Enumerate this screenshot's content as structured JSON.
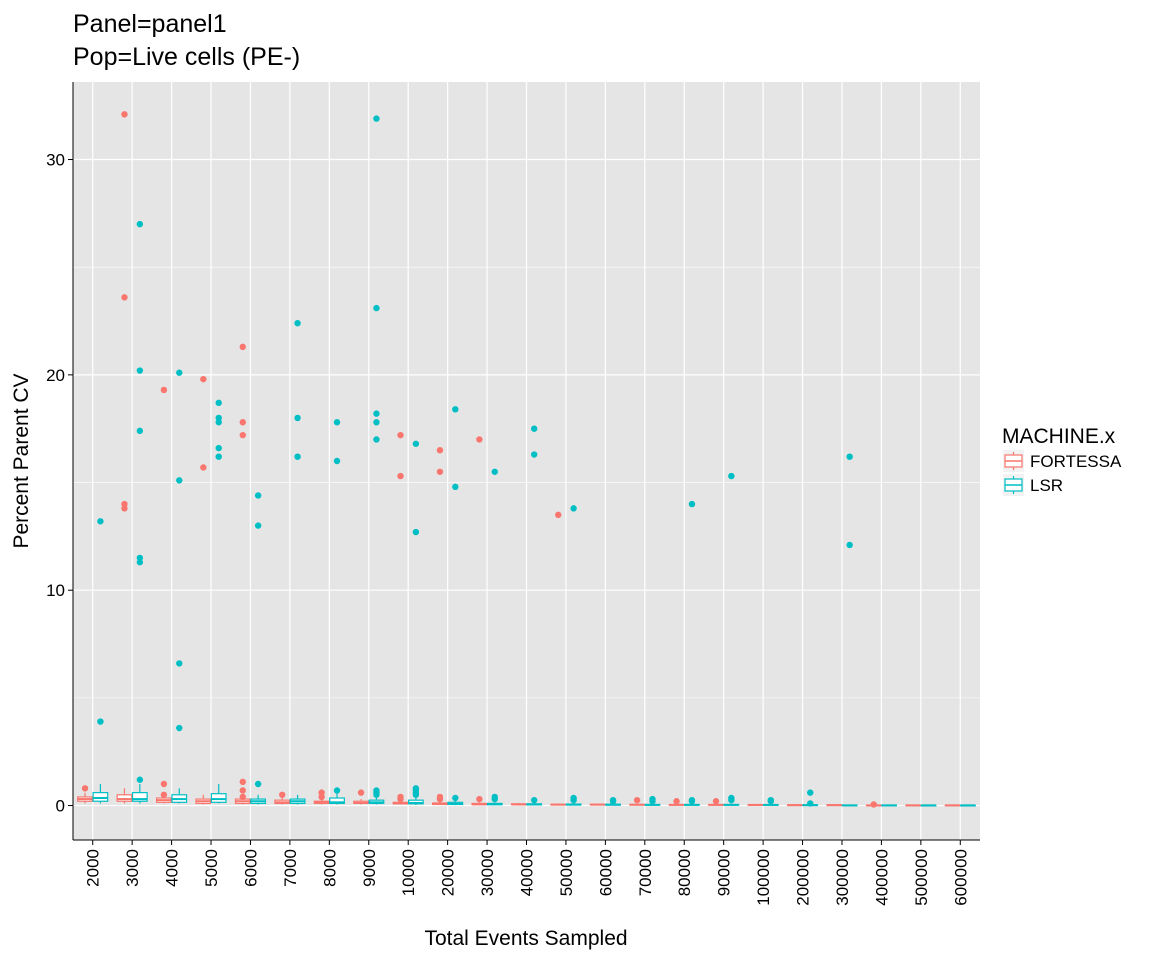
{
  "colors": {
    "FORTESSA": "#f8766d",
    "LSR": "#00bfc4",
    "panel_bg": "#e5e5e5",
    "grid": "#ffffff"
  },
  "chart_data": {
    "type": "box",
    "title": "Panel=panel1",
    "subtitle": "Pop=Live cells (PE-)",
    "xlabel": "Total Events Sampled",
    "ylabel": "Percent Parent CV",
    "ylim": [
      -1.6,
      33.6
    ],
    "y_ticks": [
      0,
      10,
      20,
      30
    ],
    "grid": true,
    "legend_position": "right",
    "legend": {
      "title": "MACHINE.x",
      "entries": [
        "FORTESSA",
        "LSR"
      ]
    },
    "categories": [
      "2000",
      "3000",
      "4000",
      "5000",
      "6000",
      "7000",
      "8000",
      "9000",
      "10000",
      "20000",
      "30000",
      "40000",
      "50000",
      "60000",
      "70000",
      "80000",
      "90000",
      "100000",
      "200000",
      "300000",
      "400000",
      "500000",
      "600000"
    ],
    "series": [
      {
        "name": "FORTESSA",
        "boxes": [
          {
            "category": "2000",
            "lower": 0.1,
            "q1": 0.2,
            "median": 0.3,
            "q3": 0.4,
            "upper": 0.6,
            "outliers": [
              0.8
            ]
          },
          {
            "category": "3000",
            "lower": 0.1,
            "q1": 0.2,
            "median": 0.3,
            "q3": 0.5,
            "upper": 0.8,
            "outliers": [
              32.1,
              23.6,
              14.0,
              13.8
            ]
          },
          {
            "category": "4000",
            "lower": 0.1,
            "q1": 0.15,
            "median": 0.25,
            "q3": 0.35,
            "upper": 0.5,
            "outliers": [
              19.3,
              1.0,
              0.5
            ]
          },
          {
            "category": "5000",
            "lower": 0.05,
            "q1": 0.1,
            "median": 0.2,
            "q3": 0.3,
            "upper": 0.5,
            "outliers": [
              19.8,
              15.7
            ]
          },
          {
            "category": "6000",
            "lower": 0.05,
            "q1": 0.1,
            "median": 0.2,
            "q3": 0.3,
            "upper": 0.4,
            "outliers": [
              21.3,
              17.8,
              17.2,
              1.1,
              0.7,
              0.4
            ]
          },
          {
            "category": "7000",
            "lower": 0.05,
            "q1": 0.1,
            "median": 0.15,
            "q3": 0.25,
            "upper": 0.35,
            "outliers": [
              0.5
            ]
          },
          {
            "category": "8000",
            "lower": 0.05,
            "q1": 0.1,
            "median": 0.15,
            "q3": 0.2,
            "upper": 0.3,
            "outliers": [
              0.6,
              0.4
            ]
          },
          {
            "category": "9000",
            "lower": 0.05,
            "q1": 0.1,
            "median": 0.12,
            "q3": 0.2,
            "upper": 0.3,
            "outliers": [
              0.6
            ]
          },
          {
            "category": "10000",
            "lower": 0.05,
            "q1": 0.08,
            "median": 0.1,
            "q3": 0.15,
            "upper": 0.25,
            "outliers": [
              17.2,
              15.3,
              0.4,
              0.3
            ]
          },
          {
            "category": "20000",
            "lower": 0.03,
            "q1": 0.05,
            "median": 0.08,
            "q3": 0.12,
            "upper": 0.2,
            "outliers": [
              16.5,
              15.5,
              0.4,
              0.3
            ]
          },
          {
            "category": "30000",
            "lower": 0.02,
            "q1": 0.04,
            "median": 0.06,
            "q3": 0.1,
            "upper": 0.15,
            "outliers": [
              17.0,
              0.3
            ]
          },
          {
            "category": "40000",
            "lower": 0.02,
            "q1": 0.04,
            "median": 0.05,
            "q3": 0.08,
            "upper": 0.12,
            "outliers": []
          },
          {
            "category": "50000",
            "lower": 0.02,
            "q1": 0.03,
            "median": 0.04,
            "q3": 0.06,
            "upper": 0.1,
            "outliers": [
              13.5
            ]
          },
          {
            "category": "60000",
            "lower": 0.02,
            "q1": 0.03,
            "median": 0.04,
            "q3": 0.06,
            "upper": 0.1,
            "outliers": []
          },
          {
            "category": "70000",
            "lower": 0.02,
            "q1": 0.03,
            "median": 0.04,
            "q3": 0.05,
            "upper": 0.08,
            "outliers": [
              0.25
            ]
          },
          {
            "category": "80000",
            "lower": 0.01,
            "q1": 0.02,
            "median": 0.03,
            "q3": 0.05,
            "upper": 0.08,
            "outliers": [
              0.2
            ]
          },
          {
            "category": "90000",
            "lower": 0.01,
            "q1": 0.02,
            "median": 0.03,
            "q3": 0.05,
            "upper": 0.08,
            "outliers": [
              0.2
            ]
          },
          {
            "category": "100000",
            "lower": 0.01,
            "q1": 0.02,
            "median": 0.03,
            "q3": 0.04,
            "upper": 0.06,
            "outliers": []
          },
          {
            "category": "200000",
            "lower": 0.01,
            "q1": 0.01,
            "median": 0.02,
            "q3": 0.03,
            "upper": 0.05,
            "outliers": []
          },
          {
            "category": "300000",
            "lower": 0.01,
            "q1": 0.01,
            "median": 0.02,
            "q3": 0.03,
            "upper": 0.04,
            "outliers": []
          },
          {
            "category": "400000",
            "lower": 0.0,
            "q1": 0.01,
            "median": 0.01,
            "q3": 0.02,
            "upper": 0.03,
            "outliers": [
              0.05
            ]
          },
          {
            "category": "500000",
            "lower": 0.0,
            "q1": 0.01,
            "median": 0.01,
            "q3": 0.02,
            "upper": 0.03,
            "outliers": []
          },
          {
            "category": "600000",
            "lower": 0.0,
            "q1": 0.01,
            "median": 0.01,
            "q3": 0.02,
            "upper": 0.03,
            "outliers": []
          }
        ]
      },
      {
        "name": "LSR",
        "boxes": [
          {
            "category": "2000",
            "lower": 0.1,
            "q1": 0.2,
            "median": 0.35,
            "q3": 0.6,
            "upper": 1.0,
            "outliers": [
              13.2,
              3.9
            ]
          },
          {
            "category": "3000",
            "lower": 0.1,
            "q1": 0.2,
            "median": 0.3,
            "q3": 0.6,
            "upper": 1.0,
            "outliers": [
              27.0,
              20.2,
              17.4,
              11.5,
              11.3,
              1.2
            ]
          },
          {
            "category": "4000",
            "lower": 0.1,
            "q1": 0.15,
            "median": 0.3,
            "q3": 0.5,
            "upper": 0.8,
            "outliers": [
              20.1,
              15.1,
              6.6,
              3.6
            ]
          },
          {
            "category": "5000",
            "lower": 0.1,
            "q1": 0.15,
            "median": 0.3,
            "q3": 0.55,
            "upper": 1.0,
            "outliers": [
              18.7,
              18.0,
              17.8,
              16.6,
              16.2
            ]
          },
          {
            "category": "6000",
            "lower": 0.05,
            "q1": 0.1,
            "median": 0.2,
            "q3": 0.3,
            "upper": 0.5,
            "outliers": [
              14.4,
              13.0,
              1.0
            ]
          },
          {
            "category": "7000",
            "lower": 0.05,
            "q1": 0.1,
            "median": 0.2,
            "q3": 0.3,
            "upper": 0.5,
            "outliers": [
              22.4,
              18.0,
              16.2
            ]
          },
          {
            "category": "8000",
            "lower": 0.05,
            "q1": 0.1,
            "median": 0.15,
            "q3": 0.35,
            "upper": 0.6,
            "outliers": [
              17.8,
              16.0,
              0.7
            ]
          },
          {
            "category": "9000",
            "lower": 0.05,
            "q1": 0.1,
            "median": 0.15,
            "q3": 0.25,
            "upper": 0.4,
            "outliers": [
              31.9,
              23.1,
              18.2,
              17.8,
              17.0,
              0.7,
              0.6,
              0.5
            ]
          },
          {
            "category": "10000",
            "lower": 0.03,
            "q1": 0.08,
            "median": 0.12,
            "q3": 0.25,
            "upper": 0.4,
            "outliers": [
              16.8,
              12.7,
              0.8,
              0.7,
              0.6,
              0.5
            ]
          },
          {
            "category": "20000",
            "lower": 0.02,
            "q1": 0.05,
            "median": 0.08,
            "q3": 0.15,
            "upper": 0.3,
            "outliers": [
              18.4,
              14.8,
              0.35
            ]
          },
          {
            "category": "30000",
            "lower": 0.02,
            "q1": 0.04,
            "median": 0.06,
            "q3": 0.1,
            "upper": 0.15,
            "outliers": [
              15.5,
              0.4,
              0.3
            ]
          },
          {
            "category": "40000",
            "lower": 0.02,
            "q1": 0.03,
            "median": 0.05,
            "q3": 0.08,
            "upper": 0.12,
            "outliers": [
              17.5,
              16.3,
              0.25
            ]
          },
          {
            "category": "50000",
            "lower": 0.02,
            "q1": 0.03,
            "median": 0.04,
            "q3": 0.07,
            "upper": 0.12,
            "outliers": [
              13.8,
              0.35,
              0.25
            ]
          },
          {
            "category": "60000",
            "lower": 0.01,
            "q1": 0.02,
            "median": 0.04,
            "q3": 0.06,
            "upper": 0.1,
            "outliers": [
              0.25,
              0.2
            ]
          },
          {
            "category": "70000",
            "lower": 0.01,
            "q1": 0.02,
            "median": 0.03,
            "q3": 0.05,
            "upper": 0.08,
            "outliers": [
              0.3,
              0.2
            ]
          },
          {
            "category": "80000",
            "lower": 0.01,
            "q1": 0.02,
            "median": 0.03,
            "q3": 0.05,
            "upper": 0.08,
            "outliers": [
              14.0,
              0.25,
              0.2
            ]
          },
          {
            "category": "90000",
            "lower": 0.01,
            "q1": 0.02,
            "median": 0.03,
            "q3": 0.05,
            "upper": 0.08,
            "outliers": [
              15.3,
              0.35,
              0.25
            ]
          },
          {
            "category": "100000",
            "lower": 0.01,
            "q1": 0.02,
            "median": 0.03,
            "q3": 0.04,
            "upper": 0.06,
            "outliers": [
              0.25,
              0.2
            ]
          },
          {
            "category": "200000",
            "lower": 0.01,
            "q1": 0.01,
            "median": 0.02,
            "q3": 0.03,
            "upper": 0.05,
            "outliers": [
              0.6,
              0.1
            ]
          },
          {
            "category": "300000",
            "lower": 0.0,
            "q1": 0.01,
            "median": 0.01,
            "q3": 0.02,
            "upper": 0.03,
            "outliers": [
              16.2,
              12.1
            ]
          },
          {
            "category": "400000",
            "lower": 0.0,
            "q1": 0.01,
            "median": 0.01,
            "q3": 0.02,
            "upper": 0.03,
            "outliers": []
          },
          {
            "category": "500000",
            "lower": 0.0,
            "q1": 0.0,
            "median": 0.01,
            "q3": 0.01,
            "upper": 0.02,
            "outliers": []
          },
          {
            "category": "600000",
            "lower": 0.0,
            "q1": 0.0,
            "median": 0.01,
            "q3": 0.01,
            "upper": 0.02,
            "outliers": []
          }
        ]
      }
    ]
  }
}
